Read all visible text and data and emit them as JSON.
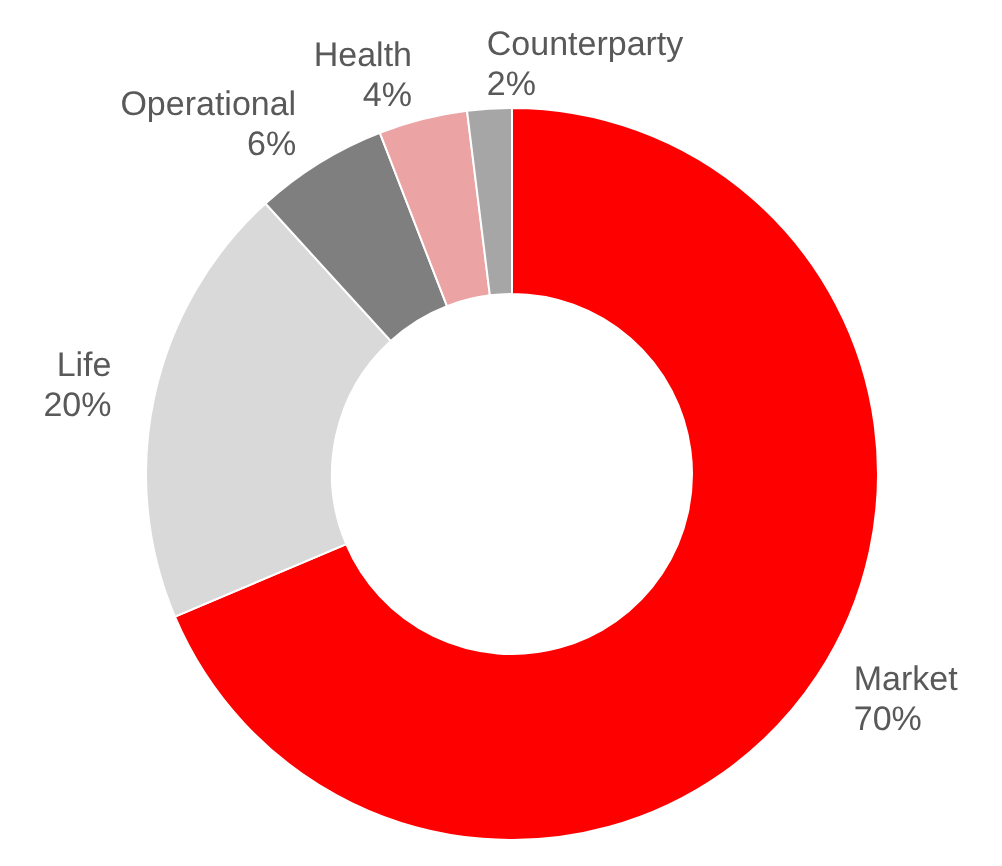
{
  "chart_data": {
    "type": "donut",
    "categories": [
      "Market",
      "Life",
      "Operational",
      "Health",
      "Counterparty"
    ],
    "values": [
      70,
      20,
      6,
      4,
      2
    ],
    "value_labels": [
      "70%",
      "20%",
      "6%",
      "4%",
      "2%"
    ],
    "colors": [
      "#ff0000",
      "#d9d9d9",
      "#7f7f7f",
      "#eba3a3",
      "#a6a6a6"
    ]
  }
}
